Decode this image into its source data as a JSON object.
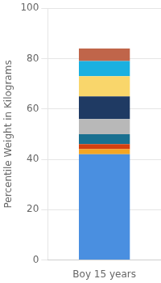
{
  "chart_data": {
    "type": "bar",
    "stacked": true,
    "categories": [
      "Boy 15 years"
    ],
    "series": [
      {
        "color": "#4a8fe0",
        "values": [
          42
        ]
      },
      {
        "color": "#f5a623",
        "values": [
          2
        ]
      },
      {
        "color": "#d44010",
        "values": [
          2
        ]
      },
      {
        "color": "#1a7090",
        "values": [
          4
        ]
      },
      {
        "color": "#b8b8b8",
        "values": [
          6
        ]
      },
      {
        "color": "#1f3a63",
        "values": [
          9
        ]
      },
      {
        "color": "#f9d66b",
        "values": [
          8
        ]
      },
      {
        "color": "#1ab0e0",
        "values": [
          6
        ]
      },
      {
        "color": "#c0654a",
        "values": [
          5
        ]
      }
    ],
    "ylabel": "Percentile Weight in Kilograms",
    "ylim": [
      0,
      100
    ],
    "yticks": [
      0,
      20,
      40,
      60,
      80,
      100
    ],
    "grid": true
  }
}
